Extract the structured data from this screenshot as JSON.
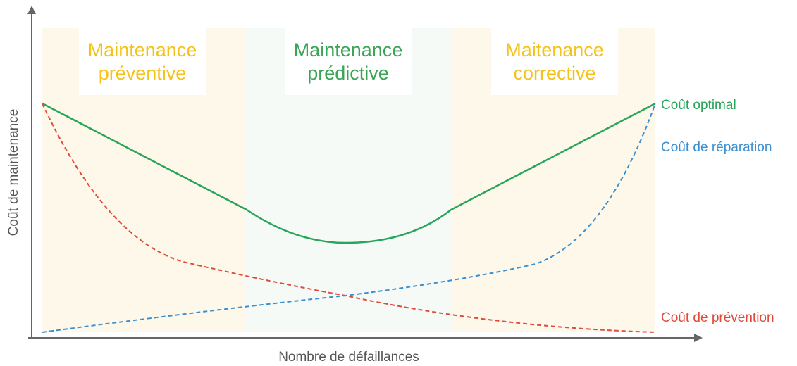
{
  "x_axis_label": "Nombre de défaillances",
  "y_axis_label": "Coût de maintenance",
  "zones": [
    {
      "lines": [
        "Maintenance",
        "préventive"
      ]
    },
    {
      "lines": [
        "Maintenance",
        "prédictive"
      ]
    },
    {
      "lines": [
        "Maitenance",
        "corrective"
      ]
    }
  ],
  "curves": [
    {
      "label": "Coût optimal"
    },
    {
      "label": "Coût de réparation"
    },
    {
      "label": "Coût de prévention"
    }
  ]
}
